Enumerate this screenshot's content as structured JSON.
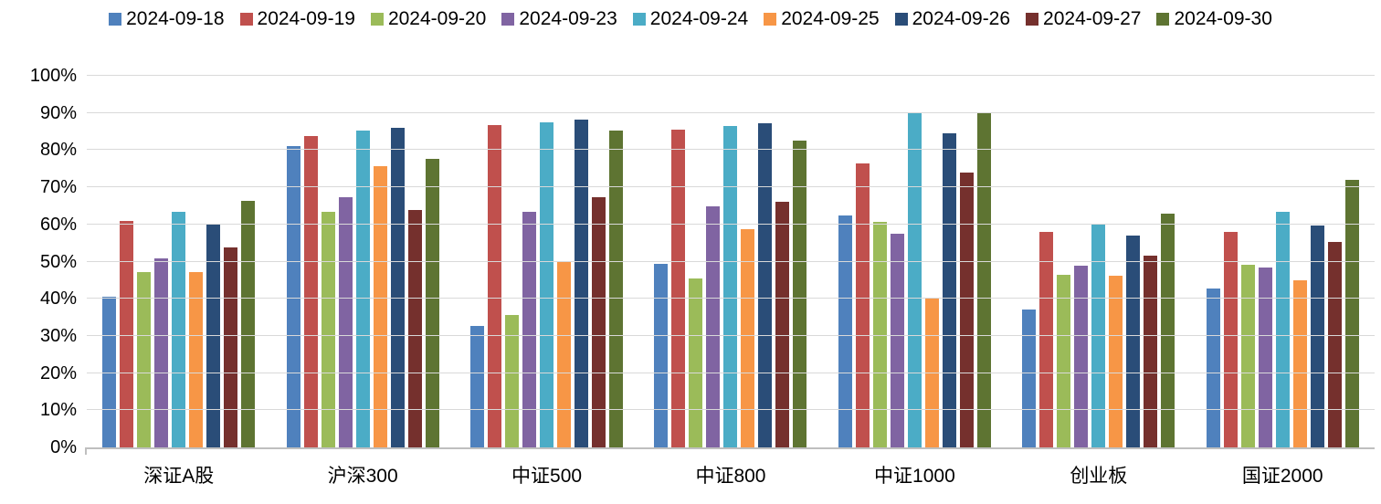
{
  "chart_data": {
    "type": "bar",
    "title": "",
    "xlabel": "",
    "ylabel": "",
    "ylim": [
      0,
      100
    ],
    "ytick_step": 10,
    "ytick_labels": [
      "0%",
      "10%",
      "20%",
      "30%",
      "40%",
      "50%",
      "60%",
      "70%",
      "80%",
      "90%",
      "100%"
    ],
    "grid": true,
    "legend_position": "top",
    "categories": [
      "深证A股",
      "沪深300",
      "中证500",
      "中证800",
      "中证1000",
      "创业板",
      "国证2000"
    ],
    "series": [
      {
        "name": "2024-09-18",
        "color": "#4F81BD",
        "values": [
          40.6,
          81.1,
          32.6,
          49.5,
          62.3,
          37.2,
          42.8
        ]
      },
      {
        "name": "2024-09-19",
        "color": "#C0504D",
        "values": [
          60.9,
          83.7,
          86.7,
          85.6,
          76.3,
          57.9,
          58.0
        ]
      },
      {
        "name": "2024-09-20",
        "color": "#9BBB59",
        "values": [
          47.1,
          63.4,
          35.6,
          45.4,
          60.8,
          46.5,
          49.2
        ]
      },
      {
        "name": "2024-09-23",
        "color": "#8064A2",
        "values": [
          50.8,
          67.4,
          63.4,
          64.9,
          57.4,
          48.8,
          48.3
        ]
      },
      {
        "name": "2024-09-24",
        "color": "#4BACC6",
        "values": [
          63.4,
          85.2,
          87.4,
          86.4,
          90.2,
          60.2,
          63.5
        ]
      },
      {
        "name": "2024-09-25",
        "color": "#F79646",
        "values": [
          47.2,
          75.8,
          49.8,
          58.7,
          40.2,
          46.1,
          44.9
        ]
      },
      {
        "name": "2024-09-26",
        "color": "#2A4D78",
        "values": [
          60.0,
          85.9,
          88.2,
          87.2,
          84.5,
          57.0,
          59.8
        ]
      },
      {
        "name": "2024-09-27",
        "color": "#75302D",
        "values": [
          53.9,
          63.8,
          67.4,
          66.2,
          74.0,
          51.7,
          55.3
        ]
      },
      {
        "name": "2024-09-30",
        "color": "#5E7432",
        "values": [
          66.3,
          77.6,
          85.2,
          82.5,
          90.2,
          62.8,
          71.9
        ]
      }
    ]
  },
  "colors": {
    "gridline": "#D9D9D9",
    "axis_line": "#BFBFBF",
    "text": "#000000",
    "background": "#FFFFFF"
  }
}
